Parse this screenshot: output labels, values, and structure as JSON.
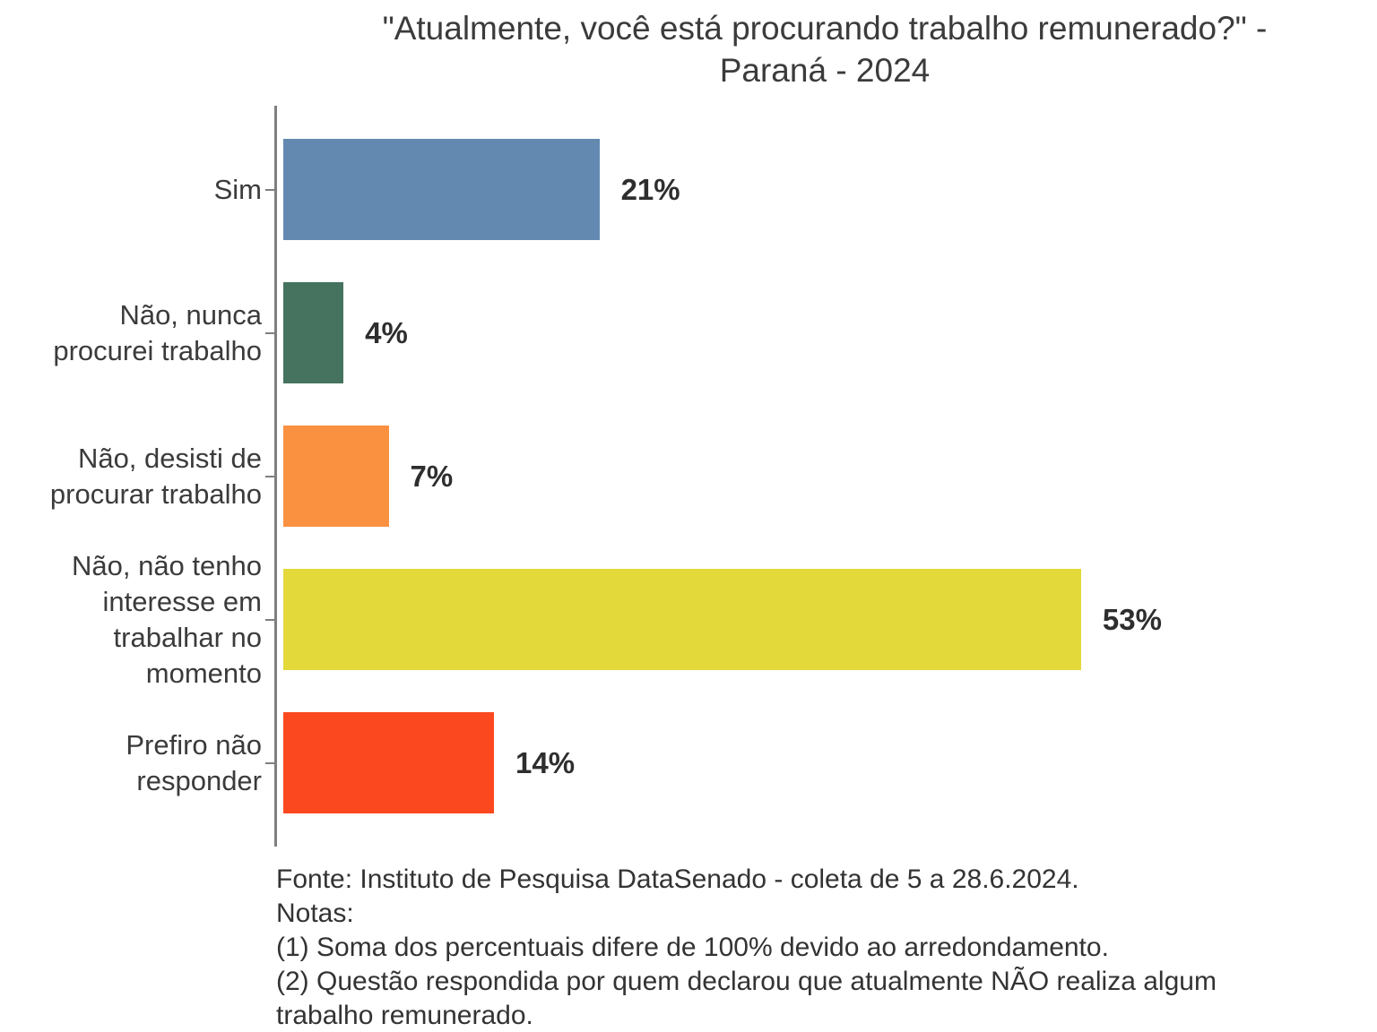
{
  "header": {
    "title_display": "\"Atualmente, você está procurando trabalho remunerado?\" -\nParaná - 2024"
  },
  "chart_data": {
    "type": "bar",
    "orientation": "horizontal",
    "title": "\"Atualmente, você está procurando trabalho remunerado?\" - Paraná - 2024",
    "categories": [
      "Sim",
      "Não, nunca procurei trabalho",
      "Não, desisti de procurar trabalho",
      "Não, não tenho interesse em trabalhar no momento",
      "Prefiro não responder"
    ],
    "display_labels": [
      "Sim",
      "Não, nunca\nprocurei trabalho",
      "Não, desisti de\nprocurar trabalho",
      "Não, não tenho\ninteresse em\ntrabalhar no\nmomento",
      "Prefiro não\nresponder"
    ],
    "values": [
      21,
      4,
      7,
      53,
      14
    ],
    "value_labels": [
      "21%",
      "4%",
      "7%",
      "53%",
      "14%"
    ],
    "bar_colors": [
      "#6389b1",
      "#45735f",
      "#f99141",
      "#e3d93a",
      "#fc481f"
    ],
    "axis_color": "#7f7f7f",
    "xlabel": "",
    "ylabel": "",
    "xlim": [
      0,
      60
    ],
    "grid": false,
    "legend": false
  },
  "notes": {
    "source": "Fonte: Instituto de Pesquisa DataSenado - coleta de 5 a 28.6.2024.",
    "heading": "Notas:",
    "note1": "(1) Soma dos percentuais difere de 100% devido ao arredondamento.",
    "note2": "(2) Questão respondida por quem declarou que atualmente NÃO realiza algum trabalho remunerado."
  }
}
